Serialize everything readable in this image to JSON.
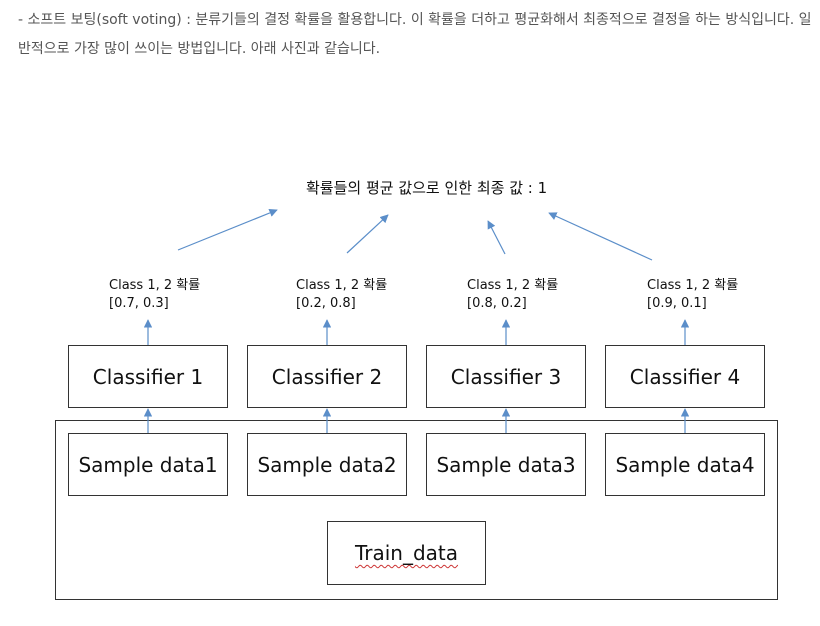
{
  "intro": {
    "text": "- 소프트 보팅(soft voting) : 분류기들의 결정 확률을 활용합니다. 이 확률을 더하고 평균화해서 최종적으로 결정을 하는 방식입니다. 일반적으로 가장 많이 쓰이는 방법입니다. 아래 사진과 같습니다."
  },
  "diagram": {
    "final_label": "확률들의 평균 값으로 인한 최종 값 : 1",
    "probabilities": [
      {
        "title": "Class 1, 2 확률",
        "values": "[0.7, 0.3]"
      },
      {
        "title": "Class 1, 2 확률",
        "values": "[0.2, 0.8]"
      },
      {
        "title": "Class 1, 2 확률",
        "values": "[0.8, 0.2]"
      },
      {
        "title": "Class 1, 2 확률",
        "values": "[0.9, 0.1]"
      }
    ],
    "classifiers": [
      "Classifier 1",
      "Classifier 2",
      "Classifier 3",
      "Classifier 4"
    ],
    "samples": [
      "Sample data1",
      "Sample data2",
      "Sample data3",
      "Sample data4"
    ],
    "train_label": "Train_data",
    "arrow_color": "#5b8ec9"
  }
}
